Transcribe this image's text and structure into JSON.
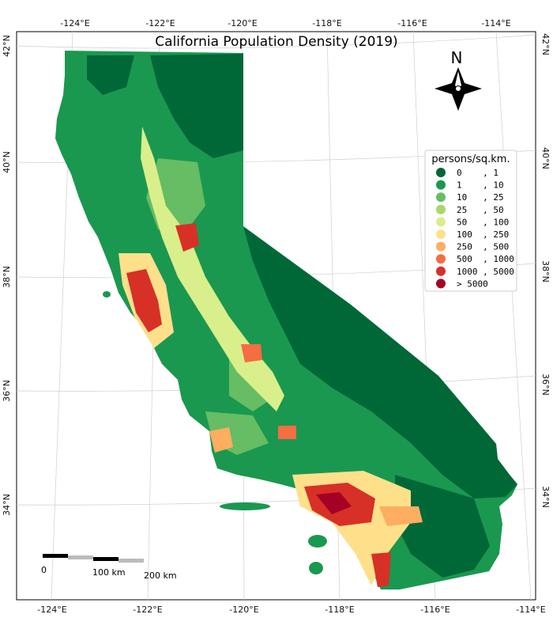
{
  "map": {
    "title": "California Population Density (2019)",
    "legend": {
      "title": "persons/sq.km.",
      "items": [
        {
          "label": "0    , 1",
          "color": "#006837"
        },
        {
          "label": "1    , 10",
          "color": "#1a9850"
        },
        {
          "label": "10   , 25",
          "color": "#66bd63"
        },
        {
          "label": "25   , 50",
          "color": "#a6d96a"
        },
        {
          "label": "50   , 100",
          "color": "#d9ef8b"
        },
        {
          "label": "100  , 250",
          "color": "#fee08b"
        },
        {
          "label": "250  , 500",
          "color": "#fdae61"
        },
        {
          "label": "500  , 1000",
          "color": "#f46d43"
        },
        {
          "label": "1000 , 5000",
          "color": "#d73027"
        },
        {
          "label": "> 5000",
          "color": "#a50026"
        }
      ]
    },
    "north_arrow_label": "N",
    "scale_bar": {
      "labels": [
        "0",
        "100 km",
        "200 km"
      ]
    },
    "longitude_ticks": [
      "-124°E",
      "-122°E",
      "-120°E",
      "-118°E",
      "-116°E",
      "-114°E"
    ],
    "latitude_ticks": [
      "42°N",
      "40°N",
      "38°N",
      "36°N",
      "34°N"
    ]
  }
}
